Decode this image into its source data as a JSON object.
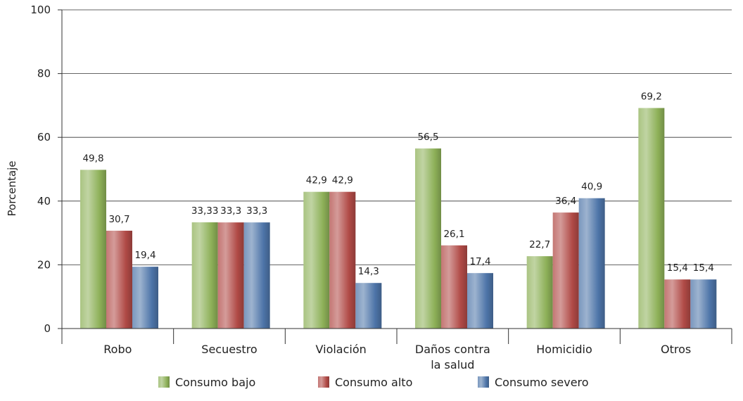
{
  "chart_data": {
    "type": "bar",
    "ylabel": "Porcentaje",
    "ylim": [
      0,
      100
    ],
    "yticks": [
      0,
      20,
      40,
      60,
      80,
      100
    ],
    "grid": true,
    "legend_position": "bottom",
    "categories": [
      [
        "Robo"
      ],
      [
        "Secuestro"
      ],
      [
        "Violación"
      ],
      [
        "Daños contra",
        "la salud"
      ],
      [
        "Homicidio"
      ],
      [
        "Otros"
      ]
    ],
    "series": [
      {
        "name": "Consumo bajo",
        "color": "#8db058",
        "values": [
          49.8,
          33.33,
          42.9,
          56.5,
          22.7,
          69.2
        ],
        "labels": [
          "49,8",
          "33,33",
          "42,9",
          "56,5",
          "22,7",
          "69,2"
        ]
      },
      {
        "name": "Consumo alto",
        "color": "#b04a46",
        "values": [
          30.7,
          33.3,
          42.9,
          26.1,
          36.4,
          15.4
        ],
        "labels": [
          "30,7",
          "33,3",
          "42,9",
          "26,1",
          "36,4",
          "15,4"
        ]
      },
      {
        "name": "Consumo severo",
        "color": "#4d74a8",
        "values": [
          19.4,
          33.3,
          14.3,
          17.4,
          40.9,
          15.4
        ],
        "labels": [
          "19,4",
          "33,3",
          "14,3",
          "17,4",
          "40,9",
          "15,4"
        ]
      }
    ]
  }
}
